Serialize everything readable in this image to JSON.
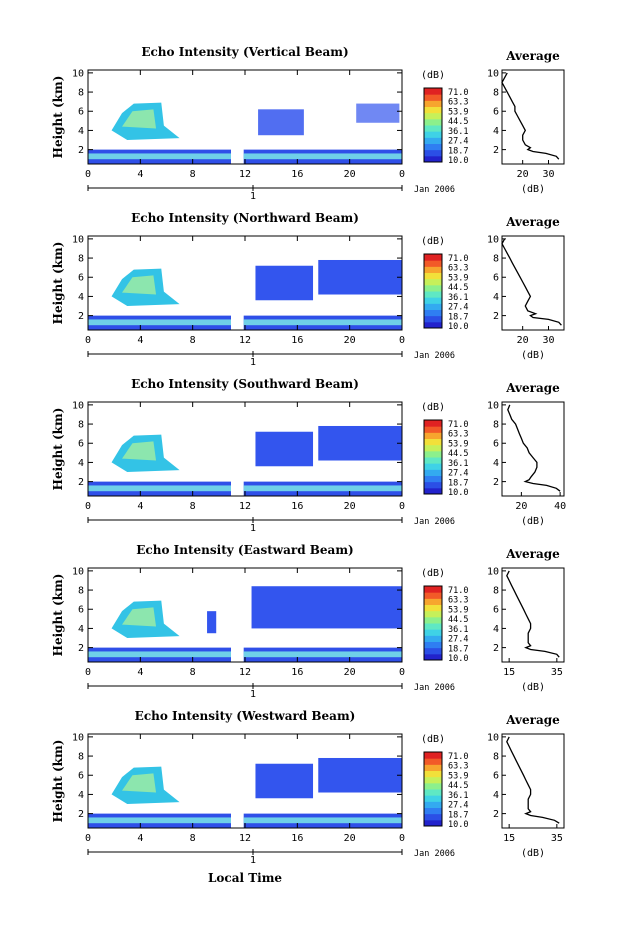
{
  "colors": {
    "colorbar": [
      "#2222cc",
      "#2b4fe6",
      "#2f7ef2",
      "#33aaf0",
      "#3fd2e6",
      "#5fe8c4",
      "#8cf08c",
      "#c6f05a",
      "#f2e03a",
      "#f7a52e",
      "#f25a28",
      "#e02222"
    ],
    "cloud_fill": "#3355ee",
    "cloud_core": "#33c3e6",
    "surface_band": "#6fd0e8"
  },
  "chart_data": [
    {
      "type": "heatmap",
      "title": "Echo Intensity (Vertical Beam)",
      "ylabel": "Height (km)",
      "xlabel": "",
      "x_ticks": [
        "0",
        "4",
        "8",
        "12",
        "16",
        "20",
        "0"
      ],
      "date_label": "Jan 2006",
      "day_marker": "1",
      "y_ticks": [
        "2",
        "4",
        "6",
        "8",
        "10"
      ],
      "ylim": [
        0.5,
        10.3
      ],
      "colorbar_unit": "(dB)",
      "colorbar_ticks": [
        "71.0",
        "63.3",
        "53.9",
        "44.5",
        "36.1",
        "27.4",
        "18.7",
        "10.0"
      ],
      "profile": {
        "title": "Average",
        "xlabel": "(dB)",
        "x_ticks": [
          "20",
          "30"
        ],
        "xlim": [
          12,
          36
        ],
        "height_km": [
          1.0,
          1.3,
          1.6,
          1.8,
          2.0,
          2.2,
          2.5,
          3.0,
          3.5,
          4.0,
          4.5,
          5.0,
          5.5,
          6.0,
          6.5,
          7.0,
          7.5,
          8.0,
          8.5,
          9.0,
          9.5,
          10.0
        ],
        "avg_db": [
          34,
          33,
          29,
          24,
          22,
          23,
          21,
          20,
          20,
          21,
          20,
          19,
          18,
          17,
          17,
          16,
          15,
          14,
          13,
          12,
          13,
          14
        ]
      }
    },
    {
      "type": "heatmap",
      "title": "Echo Intensity (Northward Beam)",
      "ylabel": "Height (km)",
      "xlabel": "",
      "x_ticks": [
        "0",
        "4",
        "8",
        "12",
        "16",
        "20",
        "0"
      ],
      "date_label": "Jan 2006",
      "day_marker": "1",
      "y_ticks": [
        "2",
        "4",
        "6",
        "8",
        "10"
      ],
      "ylim": [
        0.5,
        10.3
      ],
      "colorbar_unit": "(dB)",
      "colorbar_ticks": [
        "71.0",
        "63.3",
        "53.9",
        "44.5",
        "36.1",
        "27.4",
        "18.7",
        "10.0"
      ],
      "profile": {
        "title": "Average",
        "xlabel": "(dB)",
        "x_ticks": [
          "20",
          "30"
        ],
        "xlim": [
          12,
          36
        ],
        "height_km": [
          1.0,
          1.3,
          1.6,
          1.8,
          2.0,
          2.2,
          2.5,
          3.0,
          3.5,
          4.0,
          4.5,
          5.0,
          5.5,
          6.0,
          6.5,
          7.0,
          7.5,
          8.0,
          8.5,
          9.0,
          9.5,
          10.0
        ],
        "avg_db": [
          35,
          34,
          30,
          24,
          23,
          25,
          22,
          21,
          22,
          23,
          22,
          21,
          20,
          19,
          18,
          17,
          16,
          15,
          14,
          13,
          12,
          13
        ]
      }
    },
    {
      "type": "heatmap",
      "title": "Echo Intensity (Southward Beam)",
      "ylabel": "Height (km)",
      "xlabel": "",
      "x_ticks": [
        "0",
        "4",
        "8",
        "12",
        "16",
        "20",
        "0"
      ],
      "date_label": "Jan 2006",
      "day_marker": "1",
      "y_ticks": [
        "2",
        "4",
        "6",
        "8",
        "10"
      ],
      "ylim": [
        0.5,
        10.3
      ],
      "colorbar_unit": "(dB)",
      "colorbar_ticks": [
        "71.0",
        "63.3",
        "53.9",
        "44.5",
        "36.1",
        "27.4",
        "18.7",
        "10.0"
      ],
      "profile": {
        "title": "Average",
        "xlabel": "(dB)",
        "x_ticks": [
          "20",
          "40"
        ],
        "xlim": [
          10,
          42
        ],
        "height_km": [
          1.0,
          1.3,
          1.6,
          1.8,
          2.0,
          2.2,
          2.5,
          3.0,
          3.5,
          4.0,
          4.5,
          5.0,
          5.5,
          6.0,
          6.5,
          7.0,
          7.5,
          8.0,
          8.5,
          9.0,
          9.5,
          10.0
        ],
        "avg_db": [
          40,
          38,
          33,
          26,
          22,
          24,
          25,
          27,
          28,
          28,
          26,
          24,
          23,
          21,
          20,
          19,
          18,
          17,
          15,
          14,
          13,
          14
        ]
      }
    },
    {
      "type": "heatmap",
      "title": "Echo Intensity (Eastward Beam)",
      "ylabel": "Height (km)",
      "xlabel": "",
      "x_ticks": [
        "0",
        "4",
        "8",
        "12",
        "16",
        "20",
        "0"
      ],
      "date_label": "Jan 2006",
      "day_marker": "1",
      "y_ticks": [
        "2",
        "4",
        "6",
        "8",
        "10"
      ],
      "ylim": [
        0.5,
        10.3
      ],
      "colorbar_unit": "(dB)",
      "colorbar_ticks": [
        "71.0",
        "63.3",
        "53.9",
        "44.5",
        "36.1",
        "27.4",
        "18.7",
        "10.0"
      ],
      "profile": {
        "title": "Average",
        "xlabel": "(dB)",
        "x_ticks": [
          "15",
          "35"
        ],
        "xlim": [
          12,
          38
        ],
        "height_km": [
          1.0,
          1.3,
          1.6,
          1.8,
          2.0,
          2.2,
          2.5,
          3.0,
          3.5,
          4.0,
          4.5,
          5.0,
          5.5,
          6.0,
          6.5,
          7.0,
          7.5,
          8.0,
          8.5,
          9.0,
          9.5,
          10.0
        ],
        "avg_db": [
          36,
          35,
          30,
          24,
          22,
          24,
          23,
          23,
          23,
          24,
          24,
          23,
          22,
          21,
          20,
          19,
          18,
          17,
          16,
          15,
          14,
          15
        ]
      }
    },
    {
      "type": "heatmap",
      "title": "Echo Intensity (Westward Beam)",
      "ylabel": "Height (km)",
      "xlabel": "Local Time",
      "x_ticks": [
        "0",
        "4",
        "8",
        "12",
        "16",
        "20",
        "0"
      ],
      "date_label": "Jan 2006",
      "day_marker": "1",
      "y_ticks": [
        "2",
        "4",
        "6",
        "8",
        "10"
      ],
      "ylim": [
        0.5,
        10.3
      ],
      "colorbar_unit": "(dB)",
      "colorbar_ticks": [
        "71.0",
        "63.3",
        "53.9",
        "44.5",
        "36.1",
        "27.4",
        "18.7",
        "10.0"
      ],
      "profile": {
        "title": "Average",
        "xlabel": "(dB)",
        "x_ticks": [
          "15",
          "35"
        ],
        "xlim": [
          12,
          38
        ],
        "height_km": [
          1.0,
          1.3,
          1.6,
          1.8,
          2.0,
          2.2,
          2.5,
          3.0,
          3.5,
          4.0,
          4.5,
          5.0,
          5.5,
          6.0,
          6.5,
          7.0,
          7.5,
          8.0,
          8.5,
          9.0,
          9.5,
          10.0
        ],
        "avg_db": [
          36,
          34,
          29,
          24,
          22,
          24,
          23,
          23,
          23,
          24,
          24,
          23,
          22,
          21,
          20,
          19,
          18,
          17,
          16,
          15,
          14,
          15
        ]
      }
    }
  ]
}
